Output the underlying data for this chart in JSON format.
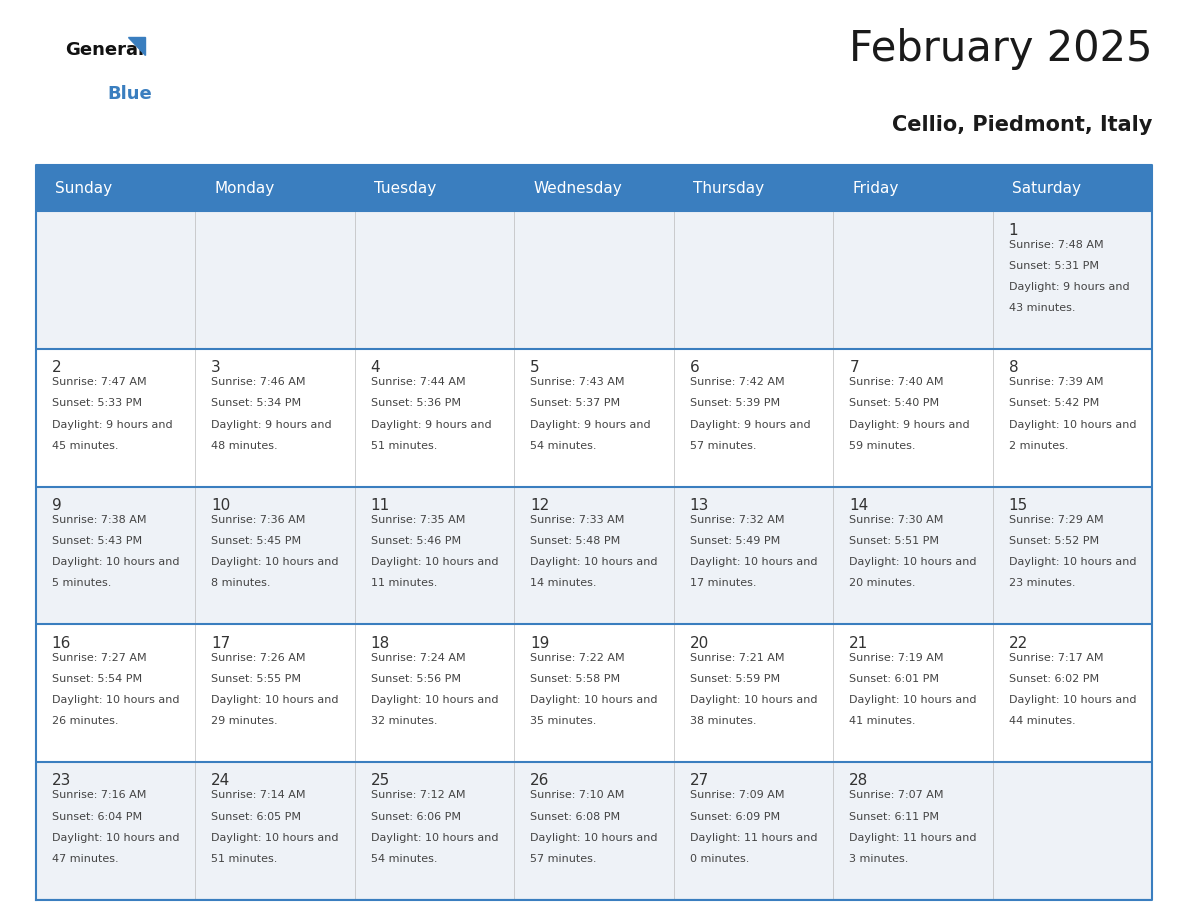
{
  "title": "February 2025",
  "subtitle": "Cellio, Piedmont, Italy",
  "header_color": "#3a7ebf",
  "header_text_color": "#ffffff",
  "day_names": [
    "Sunday",
    "Monday",
    "Tuesday",
    "Wednesday",
    "Thursday",
    "Friday",
    "Saturday"
  ],
  "bg_color": "#ffffff",
  "cell_bg_even": "#eef2f7",
  "cell_bg_odd": "#ffffff",
  "row_line_color": "#3a7ebf",
  "number_color": "#333333",
  "text_color": "#444444",
  "days": [
    {
      "day": 1,
      "col": 6,
      "row": 0,
      "sunrise": "7:48 AM",
      "sunset": "5:31 PM",
      "daylight": "9 hours and 43 minutes"
    },
    {
      "day": 2,
      "col": 0,
      "row": 1,
      "sunrise": "7:47 AM",
      "sunset": "5:33 PM",
      "daylight": "9 hours and 45 minutes"
    },
    {
      "day": 3,
      "col": 1,
      "row": 1,
      "sunrise": "7:46 AM",
      "sunset": "5:34 PM",
      "daylight": "9 hours and 48 minutes"
    },
    {
      "day": 4,
      "col": 2,
      "row": 1,
      "sunrise": "7:44 AM",
      "sunset": "5:36 PM",
      "daylight": "9 hours and 51 minutes"
    },
    {
      "day": 5,
      "col": 3,
      "row": 1,
      "sunrise": "7:43 AM",
      "sunset": "5:37 PM",
      "daylight": "9 hours and 54 minutes"
    },
    {
      "day": 6,
      "col": 4,
      "row": 1,
      "sunrise": "7:42 AM",
      "sunset": "5:39 PM",
      "daylight": "9 hours and 57 minutes"
    },
    {
      "day": 7,
      "col": 5,
      "row": 1,
      "sunrise": "7:40 AM",
      "sunset": "5:40 PM",
      "daylight": "9 hours and 59 minutes"
    },
    {
      "day": 8,
      "col": 6,
      "row": 1,
      "sunrise": "7:39 AM",
      "sunset": "5:42 PM",
      "daylight": "10 hours and 2 minutes"
    },
    {
      "day": 9,
      "col": 0,
      "row": 2,
      "sunrise": "7:38 AM",
      "sunset": "5:43 PM",
      "daylight": "10 hours and 5 minutes"
    },
    {
      "day": 10,
      "col": 1,
      "row": 2,
      "sunrise": "7:36 AM",
      "sunset": "5:45 PM",
      "daylight": "10 hours and 8 minutes"
    },
    {
      "day": 11,
      "col": 2,
      "row": 2,
      "sunrise": "7:35 AM",
      "sunset": "5:46 PM",
      "daylight": "10 hours and 11 minutes"
    },
    {
      "day": 12,
      "col": 3,
      "row": 2,
      "sunrise": "7:33 AM",
      "sunset": "5:48 PM",
      "daylight": "10 hours and 14 minutes"
    },
    {
      "day": 13,
      "col": 4,
      "row": 2,
      "sunrise": "7:32 AM",
      "sunset": "5:49 PM",
      "daylight": "10 hours and 17 minutes"
    },
    {
      "day": 14,
      "col": 5,
      "row": 2,
      "sunrise": "7:30 AM",
      "sunset": "5:51 PM",
      "daylight": "10 hours and 20 minutes"
    },
    {
      "day": 15,
      "col": 6,
      "row": 2,
      "sunrise": "7:29 AM",
      "sunset": "5:52 PM",
      "daylight": "10 hours and 23 minutes"
    },
    {
      "day": 16,
      "col": 0,
      "row": 3,
      "sunrise": "7:27 AM",
      "sunset": "5:54 PM",
      "daylight": "10 hours and 26 minutes"
    },
    {
      "day": 17,
      "col": 1,
      "row": 3,
      "sunrise": "7:26 AM",
      "sunset": "5:55 PM",
      "daylight": "10 hours and 29 minutes"
    },
    {
      "day": 18,
      "col": 2,
      "row": 3,
      "sunrise": "7:24 AM",
      "sunset": "5:56 PM",
      "daylight": "10 hours and 32 minutes"
    },
    {
      "day": 19,
      "col": 3,
      "row": 3,
      "sunrise": "7:22 AM",
      "sunset": "5:58 PM",
      "daylight": "10 hours and 35 minutes"
    },
    {
      "day": 20,
      "col": 4,
      "row": 3,
      "sunrise": "7:21 AM",
      "sunset": "5:59 PM",
      "daylight": "10 hours and 38 minutes"
    },
    {
      "day": 21,
      "col": 5,
      "row": 3,
      "sunrise": "7:19 AM",
      "sunset": "6:01 PM",
      "daylight": "10 hours and 41 minutes"
    },
    {
      "day": 22,
      "col": 6,
      "row": 3,
      "sunrise": "7:17 AM",
      "sunset": "6:02 PM",
      "daylight": "10 hours and 44 minutes"
    },
    {
      "day": 23,
      "col": 0,
      "row": 4,
      "sunrise": "7:16 AM",
      "sunset": "6:04 PM",
      "daylight": "10 hours and 47 minutes"
    },
    {
      "day": 24,
      "col": 1,
      "row": 4,
      "sunrise": "7:14 AM",
      "sunset": "6:05 PM",
      "daylight": "10 hours and 51 minutes"
    },
    {
      "day": 25,
      "col": 2,
      "row": 4,
      "sunrise": "7:12 AM",
      "sunset": "6:06 PM",
      "daylight": "10 hours and 54 minutes"
    },
    {
      "day": 26,
      "col": 3,
      "row": 4,
      "sunrise": "7:10 AM",
      "sunset": "6:08 PM",
      "daylight": "10 hours and 57 minutes"
    },
    {
      "day": 27,
      "col": 4,
      "row": 4,
      "sunrise": "7:09 AM",
      "sunset": "6:09 PM",
      "daylight": "11 hours and 0 minutes"
    },
    {
      "day": 28,
      "col": 5,
      "row": 4,
      "sunrise": "7:07 AM",
      "sunset": "6:11 PM",
      "daylight": "11 hours and 3 minutes"
    }
  ]
}
